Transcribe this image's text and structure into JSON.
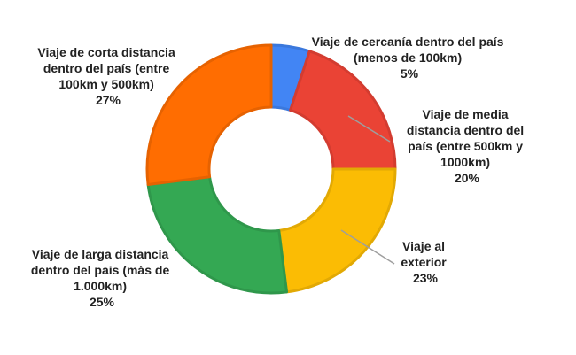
{
  "chart_data": {
    "type": "pie",
    "donut": true,
    "title": "",
    "legend": "none",
    "slices": [
      {
        "label": "Viaje de cercanía dentro del país (menos de 100km)",
        "value": 5,
        "display": "5%",
        "color": "#4285f4"
      },
      {
        "label": "Viaje de media distancia dentro del país (entre 500km y 1000km)",
        "value": 20,
        "display": "20%",
        "color": "#ea4335"
      },
      {
        "label": "Viaje al exterior",
        "value": 23,
        "display": "23%",
        "color": "#fbbc04"
      },
      {
        "label": "Viaje de larga distancia dentro del pais (más de 1.000km)",
        "value": 25,
        "display": "25%",
        "color": "#34a853"
      },
      {
        "label": "Viaje de corta distancia dentro del país (entre 100km y 500km)",
        "value": 27,
        "display": "27%",
        "color": "#ff6d01"
      }
    ]
  }
}
